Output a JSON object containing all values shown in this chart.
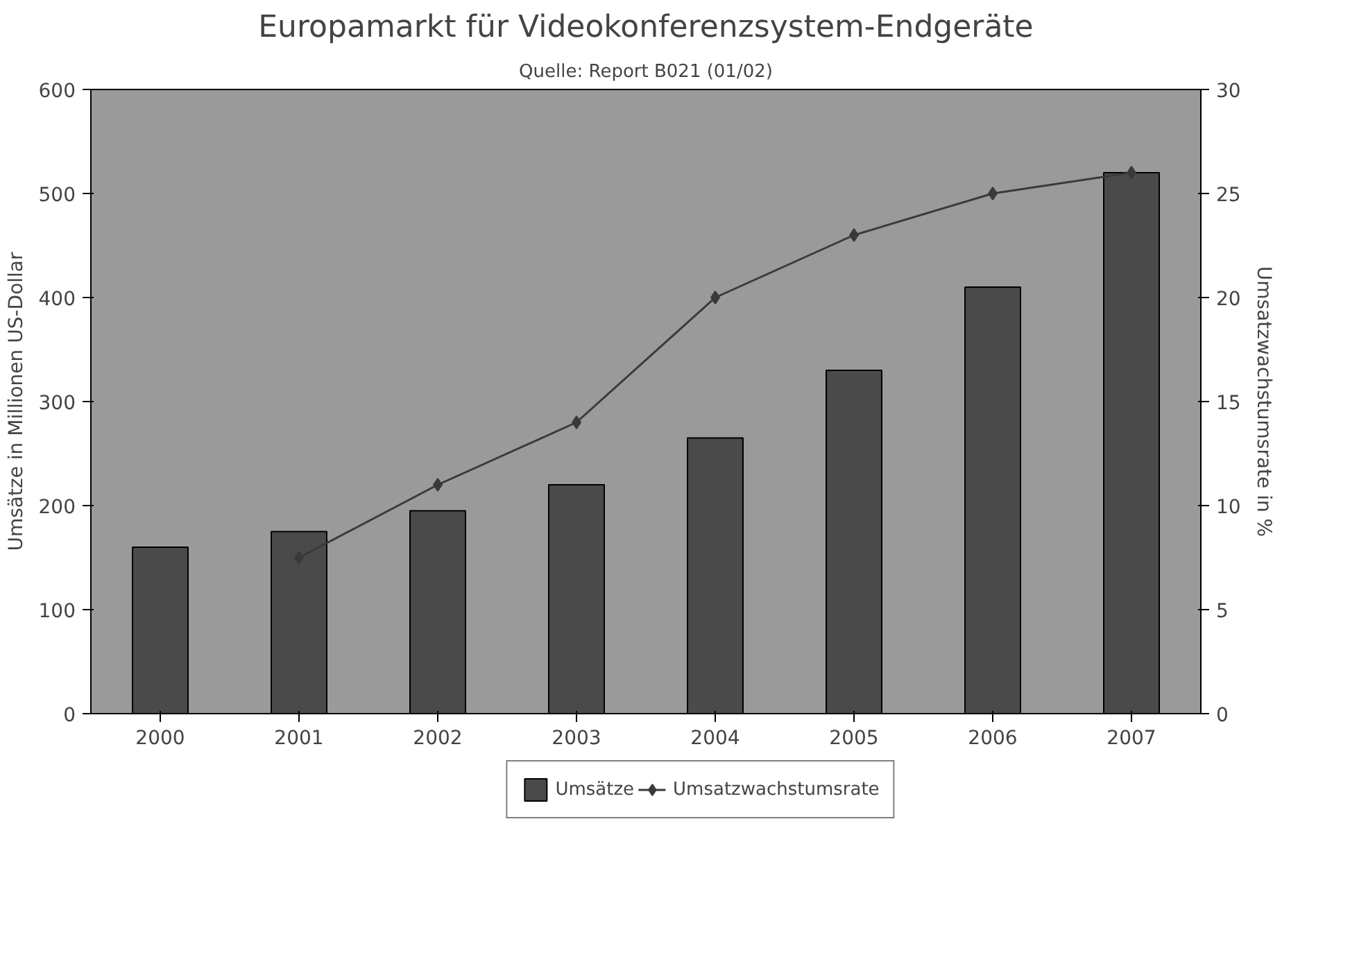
{
  "chart_data": {
    "type": "bar",
    "title": "Europamarkt für Videokonferenzsystem-Endgeräte",
    "subtitle": "Quelle: Report B021 (01/02)",
    "ylabel": "Umsätze in Millionen US-Dollar",
    "y2label": "Umsatzwachstumsrate in %",
    "categories": [
      "2000",
      "2001",
      "2002",
      "2003",
      "2004",
      "2005",
      "2006",
      "2007"
    ],
    "series": [
      {
        "name": "Umsätze",
        "color": "#4a4a4a",
        "values": [
          160,
          175,
          195,
          220,
          265,
          330,
          410,
          520
        ]
      },
      {
        "name": "Umsatzwachstumsrate",
        "type": "line",
        "axis": "y2",
        "color": "#3a3a3a",
        "marker": "diamond",
        "values": [
          null,
          7.5,
          11,
          14,
          20,
          23,
          25,
          26
        ]
      }
    ],
    "ylim": [
      0,
      600
    ],
    "yticks": [
      0,
      100,
      200,
      300,
      400,
      500,
      600
    ],
    "y2lim": [
      0,
      30
    ],
    "y2ticks": [
      0,
      5,
      10,
      15,
      20,
      25,
      30
    ],
    "grid": false,
    "legend": "bottom"
  }
}
